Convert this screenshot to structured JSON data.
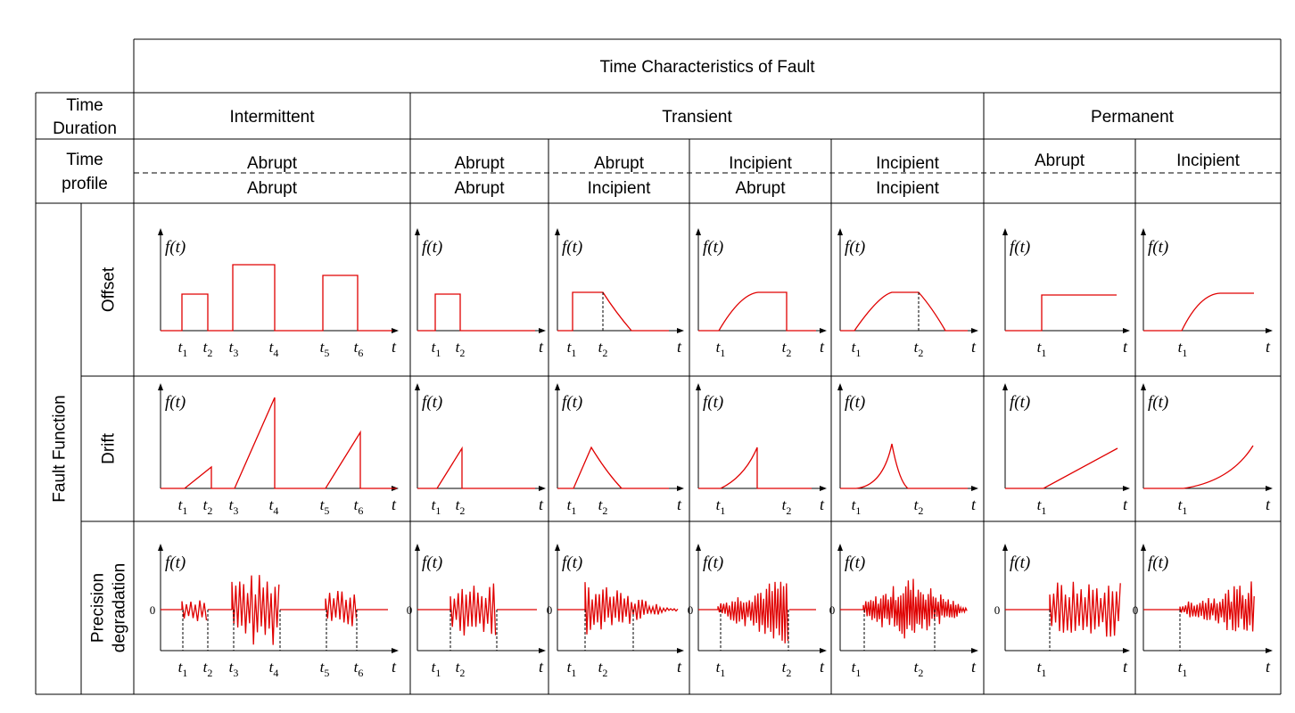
{
  "title": "Time Characteristics of Fault",
  "row_headers": {
    "duration": [
      "Time",
      "Duration"
    ],
    "profile": [
      "Time",
      "profile"
    ],
    "fault_function": "Fault Function",
    "functions": [
      {
        "label": [
          "Offset"
        ]
      },
      {
        "label": [
          "Drift"
        ]
      },
      {
        "label": [
          "Precision",
          "degradation"
        ]
      }
    ]
  },
  "durations": [
    "Intermittent",
    "Transient",
    "Permanent"
  ],
  "profiles": [
    {
      "top": "Abrupt",
      "bottom": "Abrupt"
    },
    {
      "top": "Abrupt",
      "bottom": "Abrupt"
    },
    {
      "top": "Abrupt",
      "bottom": "Incipient"
    },
    {
      "top": "Incipient",
      "bottom": "Abrupt"
    },
    {
      "top": "Incipient",
      "bottom": "Incipient"
    },
    {
      "top": "Abrupt",
      "bottom": ""
    },
    {
      "top": "Incipient",
      "bottom": ""
    }
  ],
  "plot_labels": {
    "y_axis": "f(t)",
    "x_axis": "t",
    "zero": "0",
    "col_ticks": [
      [
        "1",
        "2",
        "3",
        "4",
        "5",
        "6"
      ],
      [
        "1",
        "2"
      ],
      [
        "1",
        "2"
      ],
      [
        "1",
        "2"
      ],
      [
        "1",
        "2"
      ],
      [
        "1"
      ],
      [
        "1"
      ]
    ]
  },
  "colors": {
    "fault_line": "#e00000",
    "grid": "#000000",
    "axis": "#000000"
  }
}
